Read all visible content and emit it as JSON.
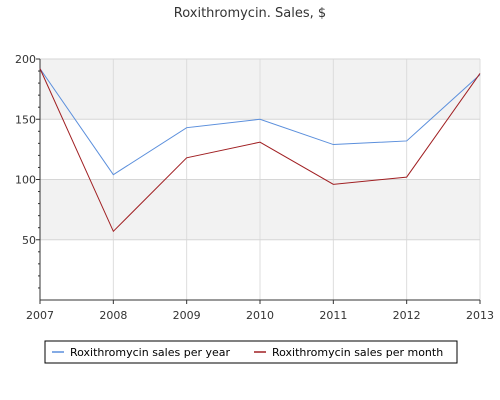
{
  "chart_data": {
    "type": "line",
    "title": "Roxithromycin. Sales, $",
    "xlabel": "",
    "ylabel": "",
    "x": [
      "2007",
      "2008",
      "2009",
      "2010",
      "2011",
      "2012",
      "2013"
    ],
    "ylim": [
      0,
      200
    ],
    "yticks": [
      50,
      100,
      150,
      200
    ],
    "series": [
      {
        "name": "Roxithromycin sales per year",
        "color": "#5b8fdc",
        "values": [
          192,
          104,
          143,
          150,
          129,
          132,
          187
        ]
      },
      {
        "name": "Roxithromycin sales per month",
        "color": "#a01f22",
        "values": [
          192,
          57,
          118,
          131,
          96,
          102,
          188
        ]
      }
    ],
    "grid": true,
    "banded_background": true,
    "legend_position": "bottom"
  }
}
